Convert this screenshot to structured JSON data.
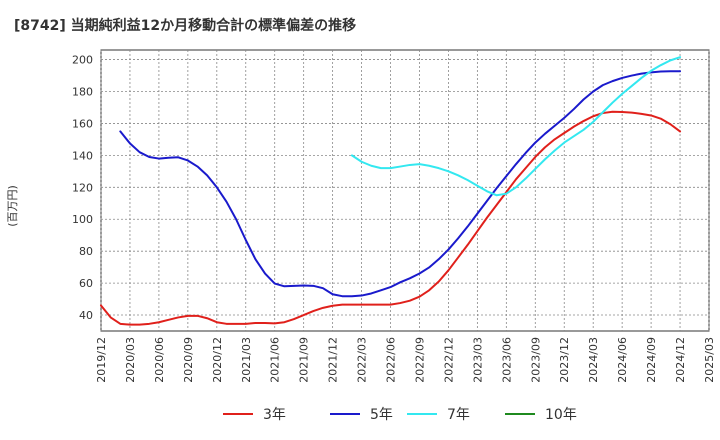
{
  "chart_data": {
    "type": "line",
    "title": "[8742]  当期純利益12か月移動合計の標準偏差の推移",
    "ylabel": "(百万円)",
    "ylim": [
      30,
      206
    ],
    "yticks": [
      40,
      60,
      80,
      100,
      120,
      140,
      160,
      180,
      200
    ],
    "xlim": [
      "2019-12",
      "2025-03"
    ],
    "xticks": [
      "2019/12",
      "2020/03",
      "2020/06",
      "2020/09",
      "2020/12",
      "2021/03",
      "2021/06",
      "2021/09",
      "2021/12",
      "2022/03",
      "2022/06",
      "2022/09",
      "2022/12",
      "2023/03",
      "2023/06",
      "2023/09",
      "2023/12",
      "2024/03",
      "2024/06",
      "2024/09",
      "2024/12",
      "2025/03"
    ],
    "grid": true,
    "legend_position": "bottom",
    "colors": {
      "3年": "#e0201b",
      "5年": "#1a1acc",
      "7年": "#33e8f0",
      "10年": "#1f8a1f"
    },
    "series": [
      {
        "name": "3年",
        "x": [
          "2019-12",
          "2020-01",
          "2020-02",
          "2020-03",
          "2020-04",
          "2020-05",
          "2020-06",
          "2020-07",
          "2020-08",
          "2020-09",
          "2020-10",
          "2020-11",
          "2020-12",
          "2021-01",
          "2021-02",
          "2021-03",
          "2021-04",
          "2021-05",
          "2021-06",
          "2021-07",
          "2021-08",
          "2021-09",
          "2021-10",
          "2021-11",
          "2021-12",
          "2022-01",
          "2022-02",
          "2022-03",
          "2022-04",
          "2022-05",
          "2022-06",
          "2022-07",
          "2022-08",
          "2022-09",
          "2022-10",
          "2022-11",
          "2022-12",
          "2023-01",
          "2023-02",
          "2023-03",
          "2023-04",
          "2023-05",
          "2023-06",
          "2023-07",
          "2023-08",
          "2023-09",
          "2023-10",
          "2023-11",
          "2023-12",
          "2024-01",
          "2024-02",
          "2024-03",
          "2024-04",
          "2024-05",
          "2024-06",
          "2024-07",
          "2024-08",
          "2024-09",
          "2024-10",
          "2024-11",
          "2024-12"
        ],
        "y": [
          46,
          38.5,
          34.5,
          34,
          34,
          34.5,
          35.5,
          37,
          38.5,
          39.5,
          39.5,
          38,
          35.5,
          34.5,
          34.5,
          34.5,
          35,
          35,
          34.8,
          35.5,
          37.5,
          40,
          42.5,
          44.5,
          45.8,
          46.5,
          46.5,
          46.5,
          46.5,
          46.5,
          46.5,
          47.5,
          49,
          51.5,
          55.5,
          61,
          68,
          76,
          84,
          92.5,
          101,
          109,
          117,
          125,
          132,
          139,
          145,
          150,
          154,
          158,
          161.5,
          164.5,
          166.5,
          167.3,
          167.2,
          166.8,
          166,
          165,
          163,
          159.5,
          155
        ]
      },
      {
        "name": "5年",
        "x": [
          "2020-02",
          "2020-03",
          "2020-04",
          "2020-05",
          "2020-06",
          "2020-07",
          "2020-08",
          "2020-09",
          "2020-10",
          "2020-11",
          "2020-12",
          "2021-01",
          "2021-02",
          "2021-03",
          "2021-04",
          "2021-05",
          "2021-06",
          "2021-07",
          "2021-08",
          "2021-09",
          "2021-10",
          "2021-11",
          "2021-12",
          "2022-01",
          "2022-02",
          "2022-03",
          "2022-04",
          "2022-05",
          "2022-06",
          "2022-07",
          "2022-08",
          "2022-09",
          "2022-10",
          "2022-11",
          "2022-12",
          "2023-01",
          "2023-02",
          "2023-03",
          "2023-04",
          "2023-05",
          "2023-06",
          "2023-07",
          "2023-08",
          "2023-09",
          "2023-10",
          "2023-11",
          "2023-12",
          "2024-01",
          "2024-02",
          "2024-03",
          "2024-04",
          "2024-05",
          "2024-06",
          "2024-07",
          "2024-08",
          "2024-09",
          "2024-10",
          "2024-11",
          "2024-12"
        ],
        "y": [
          155,
          147.5,
          142,
          139,
          138,
          138.5,
          138.8,
          136.8,
          133,
          127.5,
          120,
          111,
          100,
          87,
          75,
          66,
          59.7,
          58,
          58.3,
          58.5,
          58.3,
          56.8,
          53,
          51.8,
          51.8,
          52.2,
          53.5,
          55.5,
          57.5,
          60.5,
          63,
          66,
          69.8,
          75,
          81,
          88,
          95.5,
          103.5,
          111.5,
          119.5,
          127,
          134.5,
          141.5,
          148,
          153.5,
          158.5,
          163.5,
          169,
          175,
          180,
          184,
          186.5,
          188.5,
          190,
          191.2,
          192,
          192.5,
          192.7,
          192.7
        ]
      },
      {
        "name": "7年",
        "x": [
          "2022-02",
          "2022-03",
          "2022-04",
          "2022-05",
          "2022-06",
          "2022-07",
          "2022-08",
          "2022-09",
          "2022-10",
          "2022-11",
          "2022-12",
          "2023-01",
          "2023-02",
          "2023-03",
          "2023-04",
          "2023-05",
          "2023-06",
          "2023-07",
          "2023-08",
          "2023-09",
          "2023-10",
          "2023-11",
          "2023-12",
          "2024-01",
          "2024-02",
          "2024-03",
          "2024-04",
          "2024-05",
          "2024-06",
          "2024-07",
          "2024-08",
          "2024-09",
          "2024-10",
          "2024-11",
          "2024-12"
        ],
        "y": [
          140,
          136,
          133.5,
          132,
          132,
          133,
          134,
          134.5,
          133.5,
          132,
          130,
          127.5,
          124.5,
          121,
          117.5,
          115,
          116,
          120,
          125.5,
          131.5,
          137.5,
          143,
          148,
          152,
          156,
          161,
          167,
          173,
          178.5,
          183.5,
          188.5,
          193,
          196.5,
          199.5,
          201.5
        ]
      },
      {
        "name": "10年",
        "x": [],
        "y": []
      }
    ]
  }
}
